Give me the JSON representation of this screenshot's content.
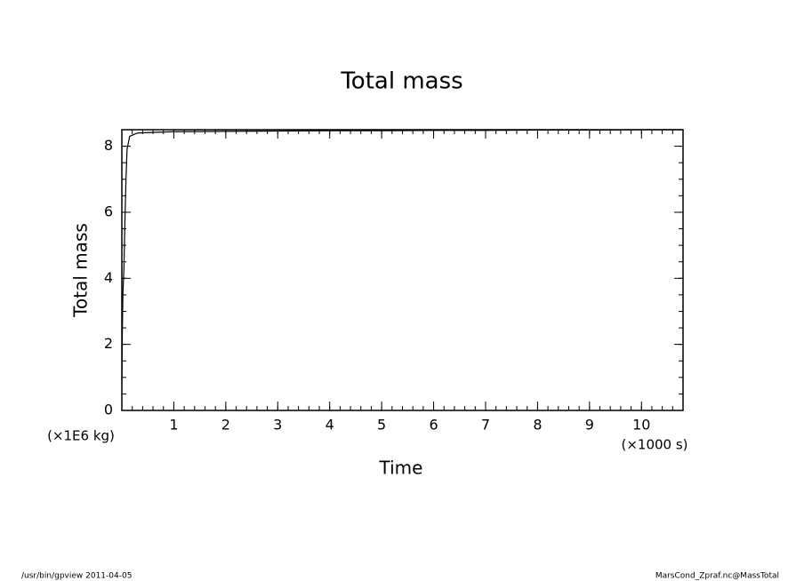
{
  "chart_data": {
    "type": "line",
    "title": "Total mass",
    "x_label": "Time",
    "y_label": "Total mass",
    "x_unit": "(×1000 s)",
    "y_unit": "(×1E6 kg)",
    "x": [
      0,
      0.01,
      0.02,
      0.04,
      0.06,
      0.08,
      0.1,
      0.15,
      0.3,
      0.6,
      1,
      2,
      3,
      4,
      5,
      6,
      7,
      8,
      9,
      10,
      10.8
    ],
    "series": [
      {
        "name": "Total mass",
        "color": "#000000",
        "values": [
          0.8,
          2.4,
          3.5,
          4.3,
          5.8,
          7.0,
          7.9,
          8.3,
          8.4,
          8.42,
          8.44,
          8.45,
          8.46,
          8.47,
          8.47,
          8.48,
          8.48,
          8.49,
          8.49,
          8.5,
          8.5
        ]
      }
    ],
    "xlim": [
      0,
      10.8
    ],
    "xticks": [
      1,
      2,
      3,
      4,
      5,
      6,
      7,
      8,
      9,
      10
    ],
    "ylim": [
      0,
      8.5
    ],
    "yticks": [
      0,
      2,
      4,
      6,
      8
    ]
  },
  "footer": {
    "left": "/usr/bin/gpview  2011-04-05",
    "right": "MarsCond_Zpraf.nc@MassTotal"
  }
}
